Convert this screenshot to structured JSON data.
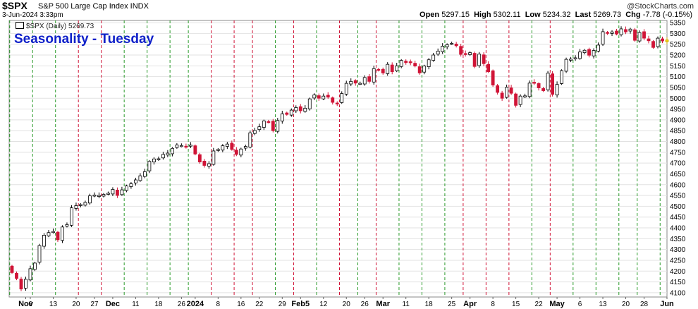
{
  "header": {
    "symbol": "$SPX",
    "description": "S&P 500 Large Cap Index  INDX",
    "date_time": "3-Jun-2024 3:33pm",
    "brand": "@StockCharts.com",
    "open_label": "Open",
    "open_value": "5297.15",
    "high_label": "High",
    "high_value": "5302.11",
    "low_label": "Low",
    "low_value": "5234.32",
    "last_label": "Last",
    "last_value": "5269.73",
    "chg_label": "Chg",
    "chg_value": "-7.78 (-0.15%)"
  },
  "legend": {
    "label": "$SPX (Daily) 5269.73"
  },
  "title": "Seasonality - Tuesday",
  "colors": {
    "up": "#000000",
    "down": "#d01437",
    "current": "#f4d20a",
    "tuesday_up": "#2a9a2a",
    "tuesday_down": "#d01437"
  },
  "chart_data": {
    "type": "candlestick",
    "title": "Seasonality - Tuesday",
    "ylim": [
      4080,
      5360
    ],
    "y_ticks": [
      4100,
      4150,
      4200,
      4250,
      4300,
      4350,
      4400,
      4450,
      4500,
      4550,
      4600,
      4650,
      4700,
      4750,
      4800,
      4850,
      4900,
      4950,
      5000,
      5050,
      5100,
      5150,
      5200,
      5250,
      5300,
      5350
    ],
    "x_tick_labels": [
      "Nov",
      "6",
      "13",
      "20",
      "27",
      "Dec",
      "11",
      "18",
      "26",
      "2024",
      "8",
      "16",
      "22",
      "29",
      "Feb5",
      "12",
      "20",
      "26",
      "Mar",
      "11",
      "18",
      "25",
      "Apr",
      "8",
      "15",
      "22",
      "May",
      "6",
      "13",
      "20",
      "28",
      "Jun"
    ],
    "x_tick_indices": [
      3,
      4,
      9,
      14,
      18,
      22,
      27,
      32,
      37,
      40,
      45,
      50,
      54,
      59,
      63,
      68,
      73,
      77,
      81,
      86,
      91,
      96,
      100,
      105,
      110,
      115,
      119,
      124,
      129,
      134,
      138,
      143
    ],
    "bold_ticks": [
      "Nov",
      "Dec",
      "2024",
      "Feb5",
      "Mar",
      "Apr",
      "May",
      "Jun"
    ],
    "tuesday_markers": [
      {
        "index": 0,
        "dir": "up"
      },
      {
        "index": 5,
        "dir": "up"
      },
      {
        "index": 10,
        "dir": "up"
      },
      {
        "index": 15,
        "dir": "down"
      },
      {
        "index": 20,
        "dir": "down"
      },
      {
        "index": 25,
        "dir": "up"
      },
      {
        "index": 30,
        "dir": "up"
      },
      {
        "index": 35,
        "dir": "up"
      },
      {
        "index": 39,
        "dir": "up"
      },
      {
        "index": 44,
        "dir": "down"
      },
      {
        "index": 49,
        "dir": "down"
      },
      {
        "index": 53,
        "dir": "down"
      },
      {
        "index": 58,
        "dir": "up"
      },
      {
        "index": 62,
        "dir": "down"
      },
      {
        "index": 67,
        "dir": "up"
      },
      {
        "index": 72,
        "dir": "down"
      },
      {
        "index": 76,
        "dir": "up"
      },
      {
        "index": 80,
        "dir": "down"
      },
      {
        "index": 85,
        "dir": "up"
      },
      {
        "index": 90,
        "dir": "up"
      },
      {
        "index": 95,
        "dir": "up"
      },
      {
        "index": 99,
        "dir": "down"
      },
      {
        "index": 104,
        "dir": "down"
      },
      {
        "index": 109,
        "dir": "down"
      },
      {
        "index": 114,
        "dir": "up"
      },
      {
        "index": 118,
        "dir": "down"
      },
      {
        "index": 123,
        "dir": "up"
      },
      {
        "index": 128,
        "dir": "up"
      },
      {
        "index": 133,
        "dir": "up"
      },
      {
        "index": 137,
        "dir": "up"
      },
      {
        "index": 142,
        "dir": "up"
      }
    ],
    "closes": [
      4193,
      4166,
      4117,
      4162,
      4211,
      4237,
      4318,
      4366,
      4378,
      4383,
      4345,
      4404,
      4415,
      4493,
      4503,
      4508,
      4518,
      4548,
      4552,
      4550,
      4555,
      4560,
      4578,
      4550,
      4576,
      4594,
      4604,
      4622,
      4641,
      4660,
      4708,
      4719,
      4720,
      4740,
      4746,
      4768,
      4784,
      4781,
      4777,
      4783,
      4742,
      4705,
      4689,
      4697,
      4756,
      4763,
      4780,
      4788,
      4763,
      4740,
      4765,
      4777,
      4840,
      4851,
      4868,
      4895,
      4890,
      4850,
      4897,
      4928,
      4925,
      4945,
      4957,
      4942,
      4954,
      4997,
      5015,
      5000,
      5010,
      5005,
      4981,
      4976,
      5022,
      5069,
      5078,
      5070,
      5069,
      5096,
      5078,
      5137,
      5130,
      5117,
      5157,
      5123,
      5150,
      5175,
      5165,
      5165,
      5149,
      5117,
      5149,
      5178,
      5200,
      5218,
      5241,
      5248,
      5254,
      5243,
      5203,
      5205,
      5211,
      5147,
      5204,
      5160,
      5123,
      5061,
      5027,
      5000,
      5051,
      5023,
      4967,
      5010,
      5011,
      5070,
      5071,
      5048,
      5035,
      5116,
      5018,
      5064,
      5128,
      5180,
      5181,
      5187,
      5214,
      5222,
      5199,
      5221,
      5246,
      5308,
      5303,
      5307,
      5297,
      5321,
      5307,
      5320,
      5268,
      5304,
      5278,
      5266,
      5235,
      5278,
      5265,
      5270
    ],
    "price_labels": [
      "5350",
      "5300",
      "5250",
      "5200",
      "5150",
      "5100",
      "5050",
      "5000",
      "4950",
      "4900",
      "4850",
      "4800",
      "4750",
      "4700",
      "4650",
      "4600",
      "4550",
      "4500",
      "4450",
      "4400",
      "4350",
      "4300",
      "4250",
      "4200",
      "4150",
      "4100"
    ]
  }
}
